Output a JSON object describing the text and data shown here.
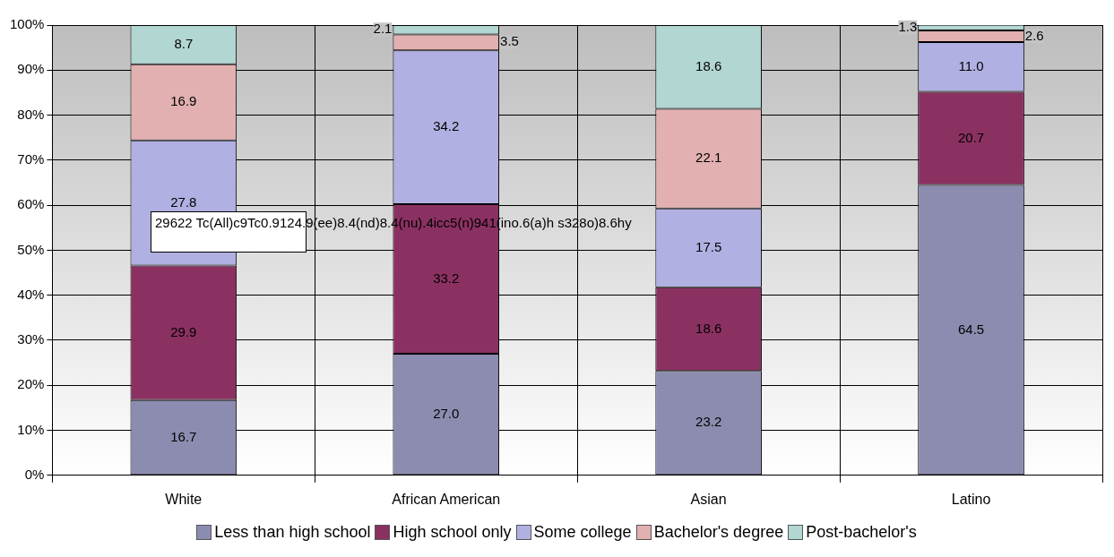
{
  "chart_data": {
    "type": "bar",
    "stacked": true,
    "categories": [
      "White",
      "African American",
      "Asian",
      "Latino"
    ],
    "series": [
      {
        "name": "Less than high school",
        "color": "#8c8cb0",
        "values": [
          16.7,
          27.0,
          23.2,
          64.5
        ],
        "value_labels": [
          "16.7",
          "27.0",
          "23.2",
          "64.5"
        ]
      },
      {
        "name": "High school only",
        "color": "#8b3162",
        "values": [
          29.9,
          33.2,
          18.6,
          20.7
        ],
        "value_labels": [
          "29.9",
          "33.2",
          "18.6",
          "20.7"
        ]
      },
      {
        "name": "Some college",
        "color": "#b1b0e2",
        "values": [
          27.8,
          34.2,
          17.5,
          11.0
        ],
        "value_labels": [
          "27.8",
          "34.2",
          "17.5",
          "11.0"
        ]
      },
      {
        "name": "Bachelor's degree",
        "color": "#e2b0b0",
        "values": [
          16.9,
          3.5,
          22.1,
          2.6
        ],
        "value_labels": [
          "16.9",
          "3.5",
          "22.1",
          "2.6"
        ]
      },
      {
        "name": "Post-bachelor's",
        "color": "#b2d6d2",
        "values": [
          8.7,
          2.1,
          18.6,
          1.3
        ],
        "value_labels": [
          "8.7",
          "2.1",
          "18.6",
          "1.3"
        ]
      }
    ],
    "ylim": [
      0,
      100
    ],
    "yticks": [
      {
        "value": 0,
        "label": "0%"
      },
      {
        "value": 10,
        "label": "10%"
      },
      {
        "value": 20,
        "label": "20%"
      },
      {
        "value": 30,
        "label": "30%"
      },
      {
        "value": 40,
        "label": "40%"
      },
      {
        "value": 50,
        "label": "50%"
      },
      {
        "value": 60,
        "label": "60%"
      },
      {
        "value": 70,
        "label": "70%"
      },
      {
        "value": 80,
        "label": "80%"
      },
      {
        "value": 90,
        "label": "90%"
      },
      {
        "value": 100,
        "label": "100%"
      }
    ],
    "grid": "y",
    "legend": "bottom",
    "annotations": [
      "29622 Tc(All)c9Tc0.9124.9(ee)8.4(nd)8.4(nu).4icc5(n)941(ino.6(a)h s328o)8.6hy"
    ]
  }
}
